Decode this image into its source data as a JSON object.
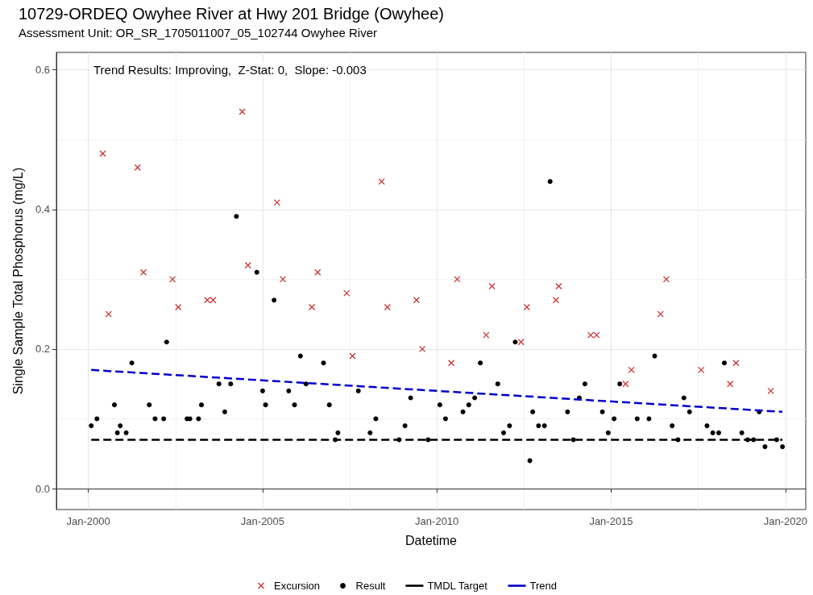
{
  "chart_data": {
    "type": "scatter",
    "title": "10729-ORDEQ Owyhee River at Hwy 201 Bridge (Owyhee)",
    "subtitle": "Assessment Unit: OR_SR_1705011007_05_102744 Owyhee River",
    "xlabel": "Datetime",
    "ylabel": "Single Sample Total Phosphorus (mg/L)",
    "annotations": [
      "Trend Results: Improving,  Z-Stat: 0,  Slope: -0.003"
    ],
    "xlim": [
      "1999-02",
      "2020-08"
    ],
    "xticks": [
      {
        "value": "2000-01",
        "label": "Jan-2000"
      },
      {
        "value": "2005-01",
        "label": "Jan-2005"
      },
      {
        "value": "2010-01",
        "label": "Jan-2010"
      },
      {
        "value": "2015-01",
        "label": "Jan-2015"
      },
      {
        "value": "2020-01",
        "label": "Jan-2020"
      }
    ],
    "ylim": [
      -0.03,
      0.625
    ],
    "yticks": [
      {
        "value": 0,
        "label": "0.0"
      },
      {
        "value": 0.2,
        "label": "0.2"
      },
      {
        "value": 0.4,
        "label": "0.4"
      },
      {
        "value": 0.6,
        "label": "0.6"
      }
    ],
    "grid": true,
    "legend": "bottom",
    "series": [
      {
        "name": "Excursion",
        "marker": "cross",
        "color": "#cc3333",
        "x": [
          "2000-06",
          "2000-08",
          "2001-06",
          "2001-08",
          "2002-06",
          "2002-08",
          "2003-06",
          "2003-08",
          "2004-06",
          "2004-08",
          "2005-06",
          "2005-08",
          "2006-06",
          "2006-08",
          "2007-06",
          "2007-08",
          "2008-06",
          "2008-08",
          "2009-06",
          "2009-08",
          "2010-06",
          "2010-08",
          "2011-06",
          "2011-08",
          "2012-06",
          "2012-08",
          "2013-06",
          "2013-07",
          "2014-06",
          "2014-08",
          "2015-06",
          "2015-08",
          "2016-06",
          "2016-08",
          "2017-08",
          "2018-06",
          "2018-08",
          "2019-08"
        ],
        "values": [
          0.48,
          0.25,
          0.46,
          0.31,
          0.3,
          0.26,
          0.27,
          0.27,
          0.54,
          0.32,
          0.41,
          0.3,
          0.26,
          0.31,
          0.28,
          0.19,
          0.44,
          0.26,
          0.27,
          0.2,
          0.18,
          0.3,
          0.22,
          0.29,
          0.21,
          0.26,
          0.27,
          0.29,
          0.22,
          0.22,
          0.15,
          0.17,
          0.25,
          0.3,
          0.17,
          0.15,
          0.18,
          0.14
        ]
      },
      {
        "name": "Result",
        "marker": "circle",
        "color": "#000000",
        "x": [
          "2000-02",
          "2000-04",
          "2000-10",
          "2000-11",
          "2000-12",
          "2001-02",
          "2001-04",
          "2001-10",
          "2001-12",
          "2002-03",
          "2002-04",
          "2002-11",
          "2002-12",
          "2003-03",
          "2003-04",
          "2003-10",
          "2003-12",
          "2004-02",
          "2004-04",
          "2004-11",
          "2005-01",
          "2005-02",
          "2005-05",
          "2005-10",
          "2005-12",
          "2006-02",
          "2006-04",
          "2006-10",
          "2006-12",
          "2007-02",
          "2007-03",
          "2007-10",
          "2008-02",
          "2008-04",
          "2008-12",
          "2009-02",
          "2009-04",
          "2009-10",
          "2010-02",
          "2010-04",
          "2010-10",
          "2010-12",
          "2011-02",
          "2011-04",
          "2011-10",
          "2011-12",
          "2012-02",
          "2012-04",
          "2012-09",
          "2012-10",
          "2012-12",
          "2013-02",
          "2013-04",
          "2013-10",
          "2013-12",
          "2014-02",
          "2014-04",
          "2014-10",
          "2014-12",
          "2015-02",
          "2015-04",
          "2015-10",
          "2016-02",
          "2016-04",
          "2016-10",
          "2016-12",
          "2017-02",
          "2017-04",
          "2017-10",
          "2017-12",
          "2018-02",
          "2018-04",
          "2018-10",
          "2018-12",
          "2019-02",
          "2019-04",
          "2019-06",
          "2019-10",
          "2019-12"
        ],
        "values": [
          0.09,
          0.1,
          0.12,
          0.08,
          0.09,
          0.08,
          0.18,
          0.12,
          0.1,
          0.1,
          0.21,
          0.1,
          0.1,
          0.1,
          0.12,
          0.15,
          0.11,
          0.15,
          0.39,
          0.31,
          0.14,
          0.12,
          0.27,
          0.14,
          0.12,
          0.19,
          0.15,
          0.18,
          0.12,
          0.07,
          0.08,
          0.14,
          0.08,
          0.1,
          0.07,
          0.09,
          0.13,
          0.07,
          0.12,
          0.1,
          0.11,
          0.12,
          0.13,
          0.18,
          0.15,
          0.08,
          0.09,
          0.21,
          0.04,
          0.11,
          0.09,
          0.09,
          0.44,
          0.11,
          0.07,
          0.13,
          0.15,
          0.11,
          0.08,
          0.1,
          0.15,
          0.1,
          0.1,
          0.19,
          0.09,
          0.07,
          0.13,
          0.11,
          0.09,
          0.08,
          0.08,
          0.18,
          0.08,
          0.07,
          0.07,
          0.11,
          0.06,
          0.07,
          0.06
        ]
      },
      {
        "name": "TMDL Target",
        "type": "line",
        "marker": "none",
        "line_style": "dashed",
        "color": "#000000",
        "x": [
          "2000-02",
          "2019-12"
        ],
        "values": [
          0.07,
          0.07
        ]
      },
      {
        "name": "Trend",
        "type": "line",
        "marker": "none",
        "line_style": "dashed",
        "color": "#0000cc",
        "x": [
          "2000-02",
          "2019-12"
        ],
        "values": [
          0.17,
          0.11
        ]
      }
    ]
  }
}
